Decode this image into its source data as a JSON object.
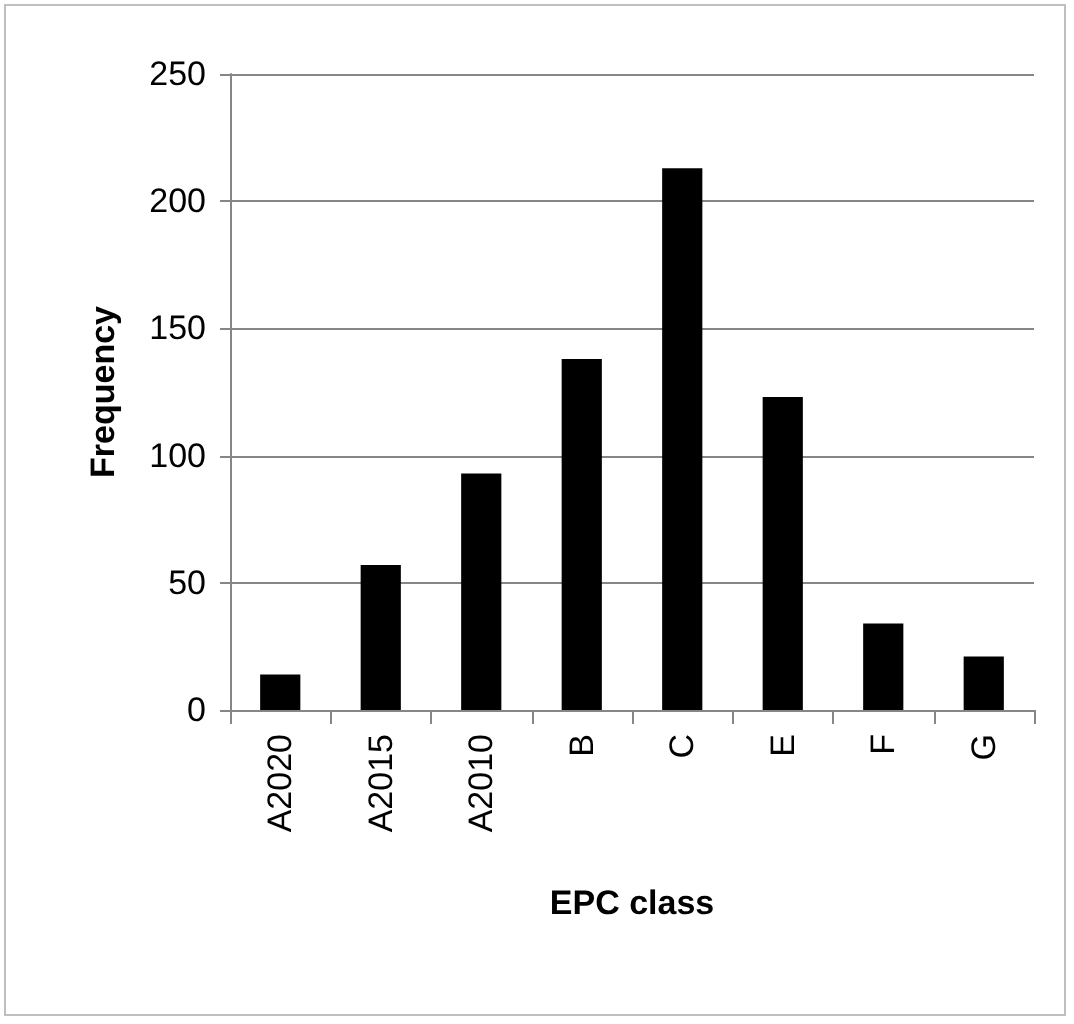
{
  "chart_data": {
    "type": "bar",
    "xlabel": "EPC class",
    "ylabel": "Frequency",
    "categories": [
      "A2020",
      "A2015",
      "A2010",
      "B",
      "C",
      "E",
      "F",
      "G"
    ],
    "values": [
      14,
      57,
      93,
      138,
      213,
      123,
      34,
      21
    ],
    "color": "#000000",
    "ylim": [
      0,
      250
    ],
    "yticks": [
      0,
      50,
      100,
      150,
      200,
      250
    ],
    "grid": "y"
  }
}
